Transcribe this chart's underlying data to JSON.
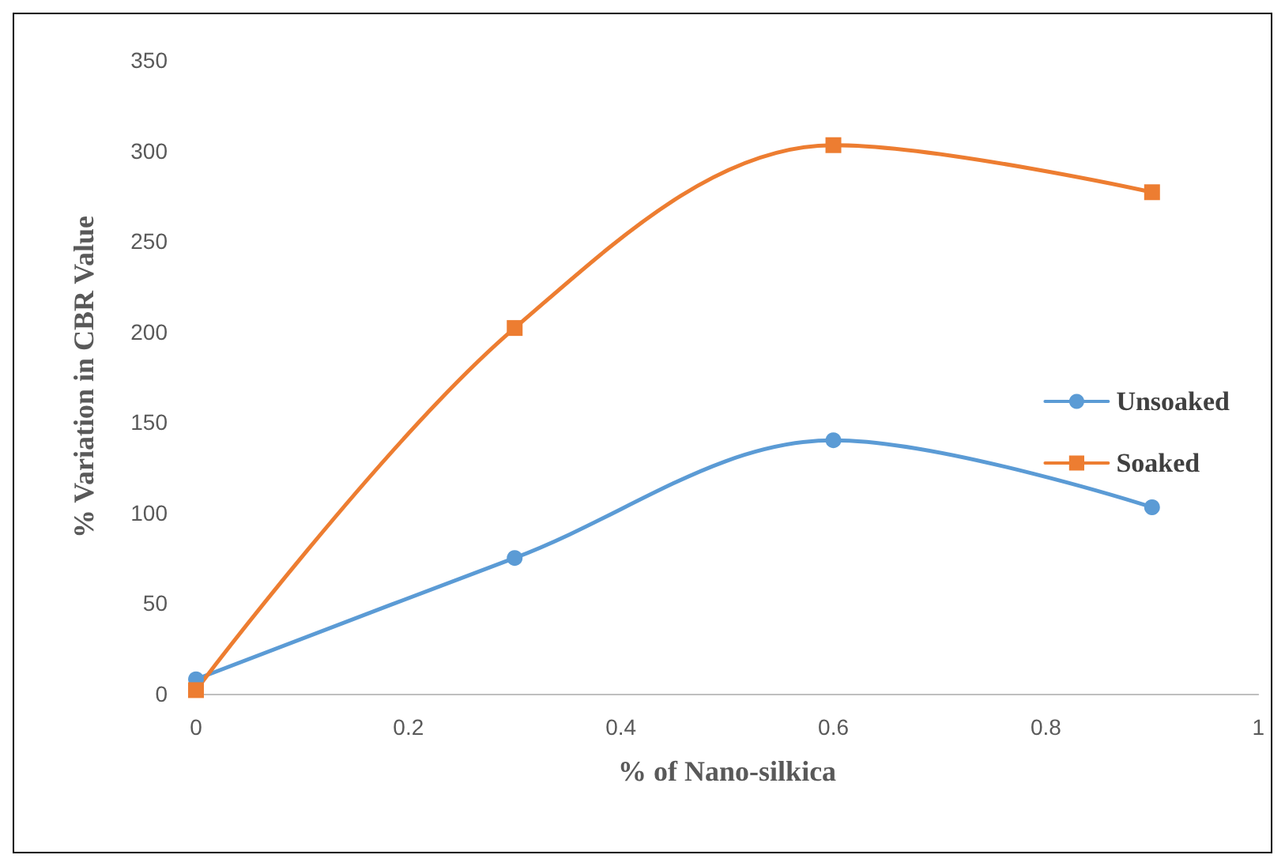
{
  "chart_data": {
    "type": "line",
    "xlabel": "% of Nano-silkica",
    "ylabel": "% Variation in CBR Value",
    "x": [
      0,
      0.3,
      0.6,
      0.9
    ],
    "series": [
      {
        "name": "Unsoaked",
        "color": "#5b9bd5",
        "values": [
          8,
          75,
          140,
          103
        ],
        "marker": "circle"
      },
      {
        "name": "Soaked",
        "color": "#ed7d31",
        "values": [
          2,
          202,
          303,
          277
        ],
        "marker": "square"
      }
    ],
    "xlim": [
      0,
      1
    ],
    "xticks": [
      0,
      0.2,
      0.4,
      0.6,
      0.8,
      1
    ],
    "ylim": [
      0,
      350
    ],
    "yticks": [
      0,
      50,
      100,
      150,
      200,
      250,
      300,
      350
    ],
    "grid": false,
    "legend": "right",
    "line_style": "solid"
  }
}
